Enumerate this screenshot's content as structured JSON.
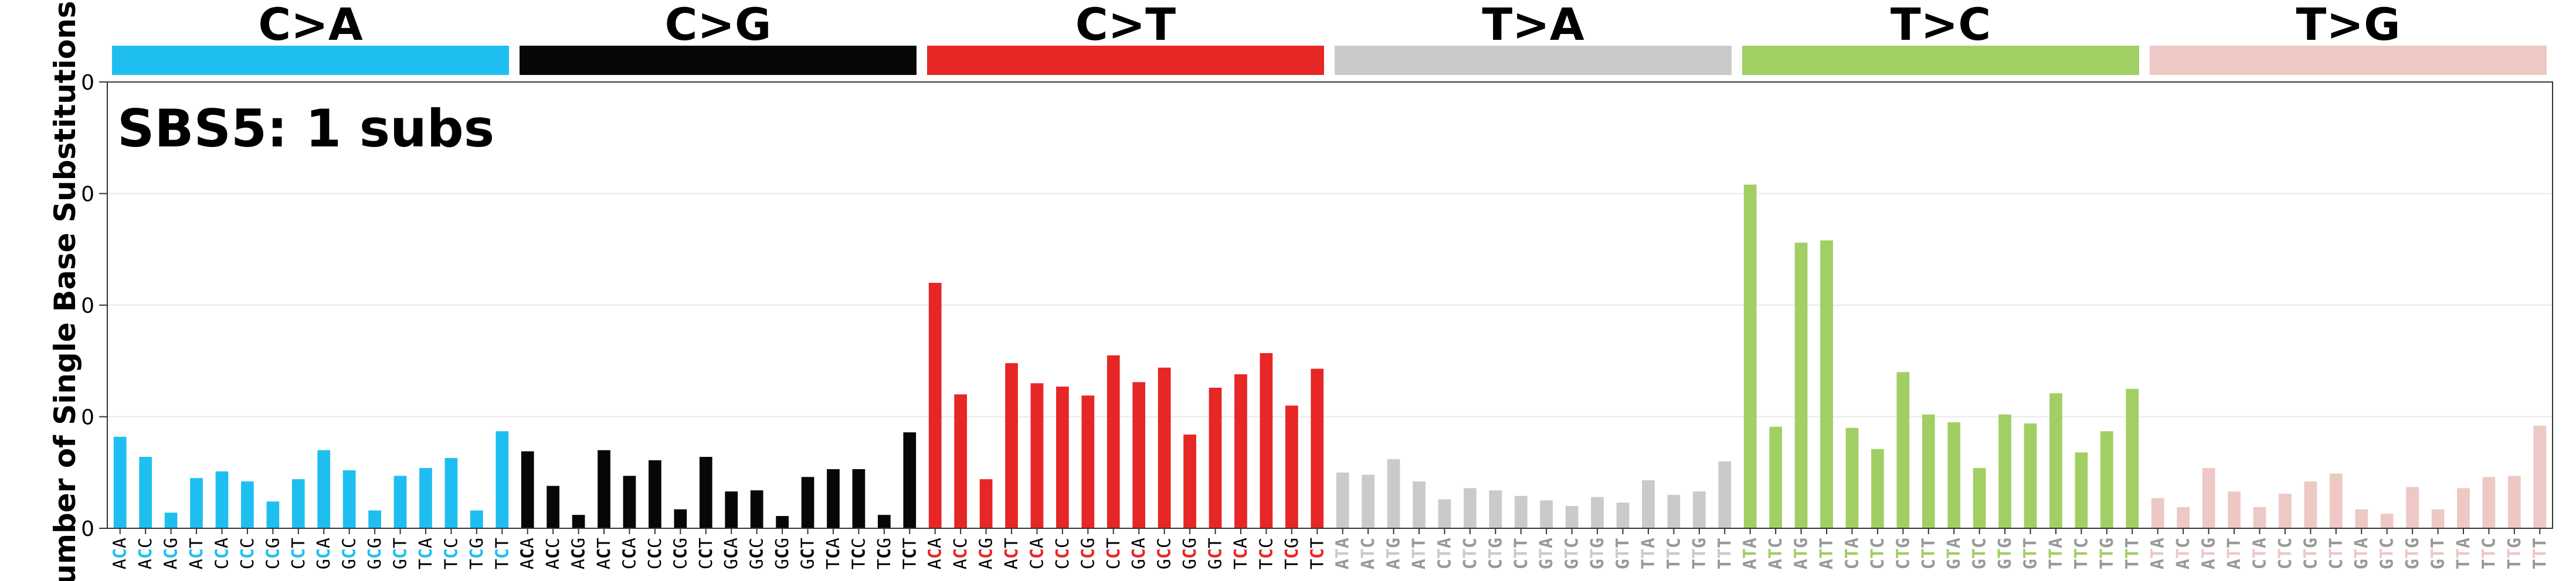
{
  "chart_data": {
    "type": "bar",
    "title": "SBS5: 1 subs",
    "ylabel": "Number of Single Base Substitutions",
    "xlabel": "",
    "ylim": [
      0,
      4
    ],
    "yticks": [
      "0",
      "0",
      "0",
      "0",
      "0"
    ],
    "grid": true,
    "groups": [
      {
        "name": "C>A",
        "color": "#1EBFF0"
      },
      {
        "name": "C>G",
        "color": "#050708"
      },
      {
        "name": "C>T",
        "color": "#E62725"
      },
      {
        "name": "T>A",
        "color": "#CBCACB"
      },
      {
        "name": "T>C",
        "color": "#A1CF64"
      },
      {
        "name": "T>G",
        "color": "#EDC8C5"
      }
    ],
    "categories": [
      "ACA",
      "ACC",
      "ACG",
      "ACT",
      "CCA",
      "CCC",
      "CCG",
      "CCT",
      "GCA",
      "GCC",
      "GCG",
      "GCT",
      "TCA",
      "TCC",
      "TCG",
      "TCT",
      "ACA",
      "ACC",
      "ACG",
      "ACT",
      "CCA",
      "CCC",
      "CCG",
      "CCT",
      "GCA",
      "GCC",
      "GCG",
      "GCT",
      "TCA",
      "TCC",
      "TCG",
      "TCT",
      "ACA",
      "ACC",
      "ACG",
      "ACT",
      "CCA",
      "CCC",
      "CCG",
      "CCT",
      "GCA",
      "GCC",
      "GCG",
      "GCT",
      "TCA",
      "TCC",
      "TCG",
      "TCT",
      "ATA",
      "ATC",
      "ATG",
      "ATT",
      "CTA",
      "CTC",
      "CTG",
      "CTT",
      "GTA",
      "GTC",
      "GTG",
      "GTT",
      "TTA",
      "TTC",
      "TTG",
      "TTT",
      "ATA",
      "ATC",
      "ATG",
      "ATT",
      "CTA",
      "CTC",
      "CTG",
      "CTT",
      "GTA",
      "GTC",
      "GTG",
      "GTT",
      "TTA",
      "TTC",
      "TTG",
      "TTT",
      "ATA",
      "ATC",
      "ATG",
      "ATT",
      "CTA",
      "CTC",
      "CTG",
      "CTT",
      "GTA",
      "GTC",
      "GTG",
      "GTT",
      "TTA",
      "TTC",
      "TTG",
      "TTT"
    ],
    "values": [
      0.82,
      0.64,
      0.14,
      0.45,
      0.51,
      0.42,
      0.24,
      0.44,
      0.7,
      0.52,
      0.16,
      0.47,
      0.54,
      0.63,
      0.16,
      0.87,
      0.69,
      0.38,
      0.12,
      0.7,
      0.47,
      0.61,
      0.17,
      0.64,
      0.33,
      0.34,
      0.11,
      0.46,
      0.53,
      0.53,
      0.12,
      0.86,
      2.2,
      1.2,
      0.44,
      1.48,
      1.3,
      1.27,
      1.19,
      1.55,
      1.31,
      1.44,
      0.84,
      1.26,
      1.38,
      1.57,
      1.1,
      1.43,
      0.5,
      0.48,
      0.62,
      0.42,
      0.26,
      0.36,
      0.34,
      0.29,
      0.25,
      0.2,
      0.28,
      0.23,
      0.43,
      0.3,
      0.33,
      0.6,
      3.08,
      0.91,
      2.56,
      2.58,
      0.9,
      0.71,
      1.4,
      1.02,
      0.95,
      0.54,
      1.02,
      0.94,
      1.21,
      0.68,
      0.87,
      1.25,
      0.27,
      0.19,
      0.54,
      0.33,
      0.19,
      0.31,
      0.42,
      0.49,
      0.17,
      0.13,
      0.37,
      0.17,
      0.36,
      0.46,
      0.47,
      0.92
    ]
  }
}
